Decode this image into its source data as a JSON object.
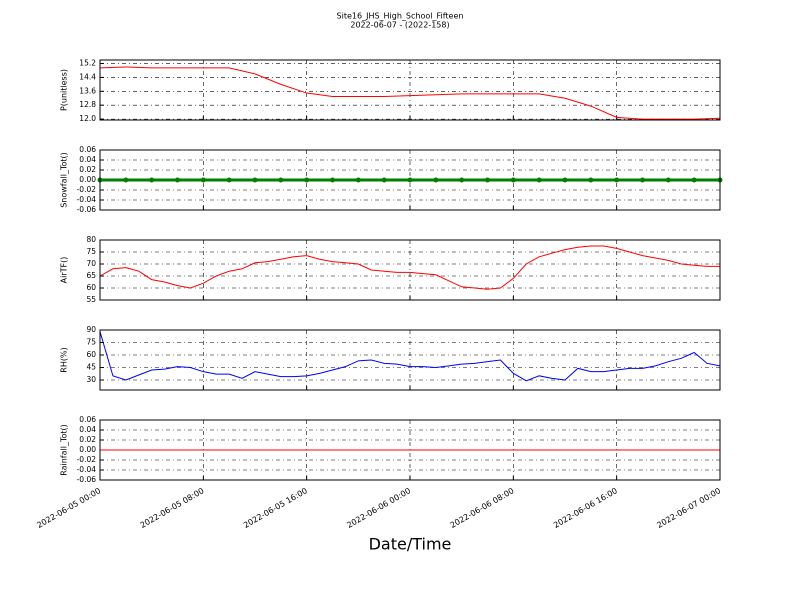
{
  "chart_data": [
    {
      "type": "line",
      "title": "Site16_JHS_High_School_Fifteen",
      "subtitle": "2022-06-07 - (2022-158)",
      "ylabel": "P(unitless)",
      "color": "#ff0000",
      "x": [
        "2022-06-05 00:00",
        "2022-06-05 02:00",
        "2022-06-05 04:00",
        "2022-06-05 06:00",
        "2022-06-05 08:00",
        "2022-06-05 10:00",
        "2022-06-05 12:00",
        "2022-06-05 14:00",
        "2022-06-05 16:00",
        "2022-06-05 18:00",
        "2022-06-05 20:00",
        "2022-06-05 22:00",
        "2022-06-06 00:00",
        "2022-06-06 02:00",
        "2022-06-06 04:00",
        "2022-06-06 06:00",
        "2022-06-06 08:00",
        "2022-06-06 10:00",
        "2022-06-06 12:00",
        "2022-06-06 14:00",
        "2022-06-06 16:00",
        "2022-06-06 18:00",
        "2022-06-06 20:00",
        "2022-06-06 22:00",
        "2022-06-07 00:00"
      ],
      "values": [
        14.95,
        15.0,
        14.95,
        14.95,
        14.95,
        14.95,
        14.6,
        14.0,
        13.5,
        13.3,
        13.3,
        13.3,
        13.35,
        13.4,
        13.45,
        13.45,
        13.45,
        13.45,
        13.2,
        12.75,
        12.1,
        12.0,
        12.0,
        12.0,
        12.05
      ],
      "ylim": [
        11.95,
        15.4
      ],
      "yticks": [
        {
          "value": 12,
          "label": "12.0"
        },
        12.8,
        13.6,
        14.4,
        15.2
      ],
      "grid": true
    },
    {
      "type": "line",
      "ylabel": "Snowfall_Tot()",
      "color": "#008000",
      "markers": true,
      "x": [
        "2022-06-05 00:00",
        "2022-06-05 02:00",
        "2022-06-05 04:00",
        "2022-06-05 06:00",
        "2022-06-05 08:00",
        "2022-06-05 10:00",
        "2022-06-05 12:00",
        "2022-06-05 14:00",
        "2022-06-05 16:00",
        "2022-06-05 18:00",
        "2022-06-05 20:00",
        "2022-06-05 22:00",
        "2022-06-06 00:00",
        "2022-06-06 02:00",
        "2022-06-06 04:00",
        "2022-06-06 06:00",
        "2022-06-06 08:00",
        "2022-06-06 10:00",
        "2022-06-06 12:00",
        "2022-06-06 14:00",
        "2022-06-06 16:00",
        "2022-06-06 18:00",
        "2022-06-06 20:00",
        "2022-06-06 22:00",
        "2022-06-07 00:00"
      ],
      "values": [
        0,
        0,
        0,
        0,
        0,
        0,
        0,
        0,
        0,
        0,
        0,
        0,
        0,
        0,
        0,
        0,
        0,
        0,
        0,
        0,
        0,
        0,
        0,
        0,
        0
      ],
      "ylim": [
        -0.06,
        0.06
      ],
      "yticks": [
        -0.06,
        -0.04,
        -0.02,
        {
          "value": 0,
          "label": "0.00"
        },
        0.02,
        0.04,
        0.06
      ],
      "grid": true
    },
    {
      "type": "line",
      "ylabel": "AirTF()",
      "color": "#ff0000",
      "x": [
        "2022-06-05 00:00",
        "2022-06-05 01:00",
        "2022-06-05 02:00",
        "2022-06-05 03:00",
        "2022-06-05 04:00",
        "2022-06-05 05:00",
        "2022-06-05 06:00",
        "2022-06-05 07:00",
        "2022-06-05 08:00",
        "2022-06-05 09:00",
        "2022-06-05 10:00",
        "2022-06-05 11:00",
        "2022-06-05 12:00",
        "2022-06-05 13:00",
        "2022-06-05 14:00",
        "2022-06-05 15:00",
        "2022-06-05 16:00",
        "2022-06-05 17:00",
        "2022-06-05 18:00",
        "2022-06-05 19:00",
        "2022-06-05 20:00",
        "2022-06-05 21:00",
        "2022-06-05 22:00",
        "2022-06-05 23:00",
        "2022-06-06 00:00",
        "2022-06-06 01:00",
        "2022-06-06 02:00",
        "2022-06-06 03:00",
        "2022-06-06 04:00",
        "2022-06-06 05:00",
        "2022-06-06 06:00",
        "2022-06-06 07:00",
        "2022-06-06 08:00",
        "2022-06-06 09:00",
        "2022-06-06 10:00",
        "2022-06-06 11:00",
        "2022-06-06 12:00",
        "2022-06-06 13:00",
        "2022-06-06 14:00",
        "2022-06-06 15:00",
        "2022-06-06 16:00",
        "2022-06-06 17:00",
        "2022-06-06 18:00",
        "2022-06-06 19:00",
        "2022-06-06 20:00",
        "2022-06-06 21:00",
        "2022-06-06 22:00",
        "2022-06-06 23:00",
        "2022-06-07 00:00"
      ],
      "values": [
        65,
        68,
        68.5,
        67,
        63.5,
        62.5,
        61,
        60,
        62,
        65,
        67,
        68,
        70.5,
        71,
        72,
        73,
        73.5,
        72,
        71,
        70.5,
        70,
        67.5,
        67,
        66.5,
        66.5,
        66,
        65.5,
        63,
        60.5,
        60,
        59.5,
        60,
        64,
        70,
        73,
        74.5,
        76,
        77,
        77.5,
        77.5,
        76.5,
        75,
        73.5,
        72.5,
        71.5,
        70,
        69.5,
        69,
        69
      ],
      "ylim": [
        55,
        80
      ],
      "yticks": [
        55,
        60,
        65,
        70,
        75,
        80
      ],
      "grid": true
    },
    {
      "type": "line",
      "ylabel": "RH(%)",
      "color": "#0000ff",
      "x": [
        "2022-06-05 00:00",
        "2022-06-05 01:00",
        "2022-06-05 02:00",
        "2022-06-05 03:00",
        "2022-06-05 04:00",
        "2022-06-05 05:00",
        "2022-06-05 06:00",
        "2022-06-05 07:00",
        "2022-06-05 08:00",
        "2022-06-05 09:00",
        "2022-06-05 10:00",
        "2022-06-05 11:00",
        "2022-06-05 12:00",
        "2022-06-05 13:00",
        "2022-06-05 14:00",
        "2022-06-05 15:00",
        "2022-06-05 16:00",
        "2022-06-05 17:00",
        "2022-06-05 18:00",
        "2022-06-05 19:00",
        "2022-06-05 20:00",
        "2022-06-05 21:00",
        "2022-06-05 22:00",
        "2022-06-05 23:00",
        "2022-06-06 00:00",
        "2022-06-06 01:00",
        "2022-06-06 02:00",
        "2022-06-06 03:00",
        "2022-06-06 04:00",
        "2022-06-06 05:00",
        "2022-06-06 06:00",
        "2022-06-06 07:00",
        "2022-06-06 08:00",
        "2022-06-06 09:00",
        "2022-06-06 10:00",
        "2022-06-06 11:00",
        "2022-06-06 12:00",
        "2022-06-06 13:00",
        "2022-06-06 14:00",
        "2022-06-06 15:00",
        "2022-06-06 16:00",
        "2022-06-06 17:00",
        "2022-06-06 18:00",
        "2022-06-06 19:00",
        "2022-06-06 20:00",
        "2022-06-06 21:00",
        "2022-06-06 22:00",
        "2022-06-06 23:00",
        "2022-06-07 00:00"
      ],
      "values": [
        88,
        35,
        30,
        36,
        42,
        43,
        46,
        45,
        40,
        37,
        37,
        32,
        40,
        37,
        34,
        34,
        35,
        38,
        42,
        46,
        53,
        54,
        50,
        49,
        46,
        46,
        45,
        47,
        49,
        50,
        52,
        54,
        38,
        29,
        35,
        32,
        30,
        44,
        40,
        40,
        42,
        44,
        44,
        47,
        52,
        56,
        63,
        50,
        47
      ],
      "ylim": [
        18,
        90
      ],
      "yticks": [
        30,
        45,
        60,
        75,
        90
      ],
      "grid": true
    },
    {
      "type": "line",
      "ylabel": "Rainfall_Tot()",
      "xlabel": "Date/Time",
      "color": "#ff0000",
      "x": [
        "2022-06-05 00:00",
        "2022-06-05 02:00",
        "2022-06-05 04:00",
        "2022-06-05 06:00",
        "2022-06-05 08:00",
        "2022-06-05 10:00",
        "2022-06-05 12:00",
        "2022-06-05 14:00",
        "2022-06-05 16:00",
        "2022-06-05 18:00",
        "2022-06-05 20:00",
        "2022-06-05 22:00",
        "2022-06-06 00:00",
        "2022-06-06 02:00",
        "2022-06-06 04:00",
        "2022-06-06 06:00",
        "2022-06-06 08:00",
        "2022-06-06 10:00",
        "2022-06-06 12:00",
        "2022-06-06 14:00",
        "2022-06-06 16:00",
        "2022-06-06 18:00",
        "2022-06-06 20:00",
        "2022-06-06 22:00",
        "2022-06-07 00:00"
      ],
      "values": [
        0,
        0,
        0,
        0,
        0,
        0,
        0,
        0,
        0,
        0,
        0,
        0,
        0,
        0,
        0,
        0,
        0,
        0,
        0,
        0,
        0,
        0,
        0,
        0,
        0
      ],
      "ylim": [
        -0.06,
        0.06
      ],
      "yticks": [
        -0.06,
        -0.04,
        -0.02,
        {
          "value": 0,
          "label": "0.00"
        },
        0.02,
        0.04,
        0.06
      ],
      "grid": true,
      "xlim": [
        "2022-06-05 00:00",
        "2022-06-07 00:00"
      ],
      "xticks": [
        "2022-06-05 00:00",
        "2022-06-05 08:00",
        "2022-06-05 16:00",
        "2022-06-06 00:00",
        "2022-06-06 08:00",
        "2022-06-06 16:00",
        "2022-06-07 00:00"
      ]
    }
  ]
}
